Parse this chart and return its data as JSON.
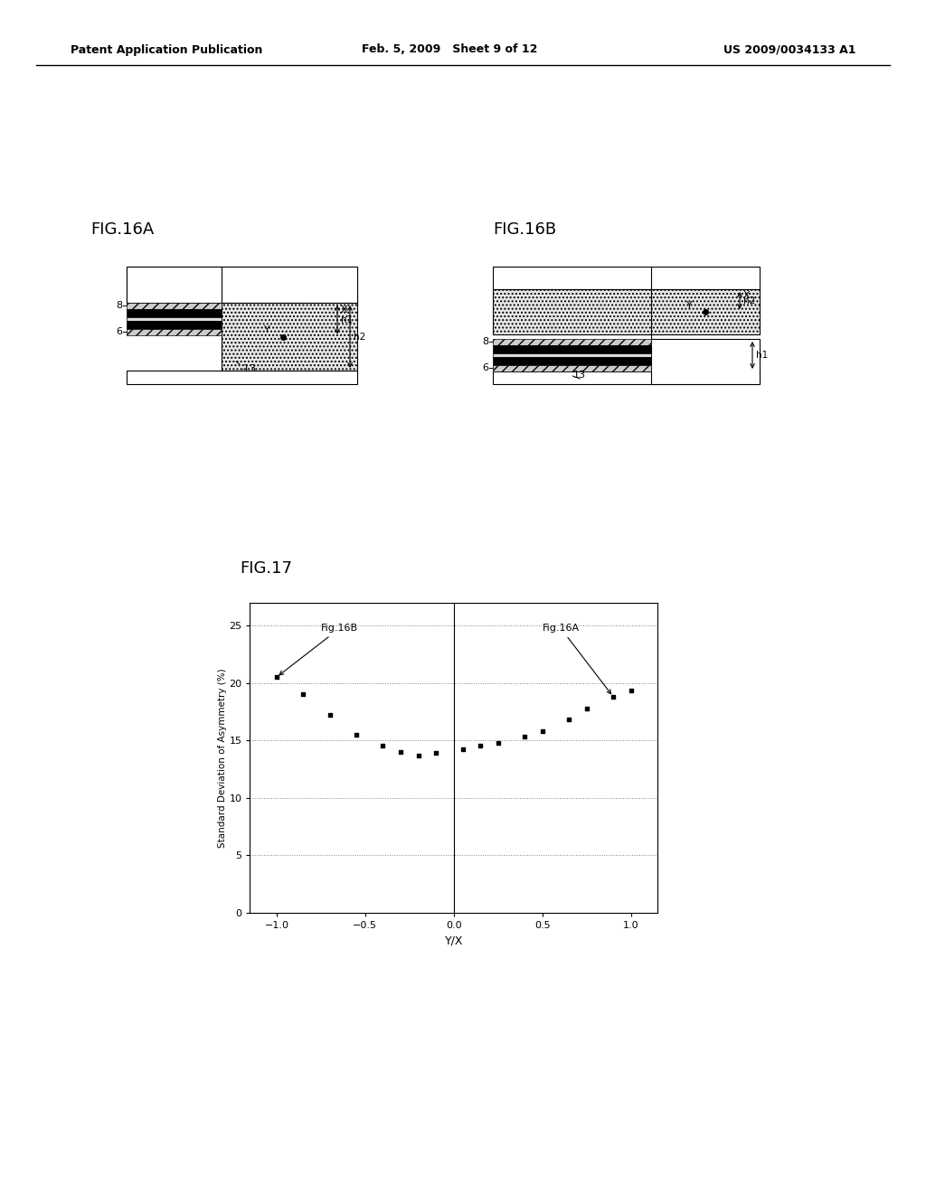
{
  "header_left": "Patent Application Publication",
  "header_mid": "Feb. 5, 2009   Sheet 9 of 12",
  "header_right": "US 2009/0034133 A1",
  "fig16a_label": "FIG.16A",
  "fig16b_label": "FIG.16B",
  "fig17_label": "FIG.17",
  "fig17_xlabel": "Y/X",
  "fig17_ylabel": "Standard Deviation of Asymmetry (%)",
  "fig17_annot_left": "Fig.16B",
  "fig17_annot_right": "Fig.16A",
  "fig17_xlim": [
    -1.15,
    1.15
  ],
  "fig17_ylim": [
    0,
    27
  ],
  "fig17_xticks": [
    -1,
    -0.5,
    0,
    0.5,
    1
  ],
  "fig17_yticks": [
    0,
    5,
    10,
    15,
    20,
    25
  ],
  "fig17_data_x": [
    -1.0,
    -0.85,
    -0.7,
    -0.55,
    -0.4,
    -0.3,
    -0.2,
    -0.1,
    0.05,
    0.15,
    0.25,
    0.4,
    0.5,
    0.65,
    0.75,
    0.9,
    1.0
  ],
  "fig17_data_y": [
    20.5,
    19.0,
    17.2,
    15.5,
    14.5,
    14.0,
    13.7,
    13.9,
    14.2,
    14.5,
    14.8,
    15.3,
    15.8,
    16.8,
    17.8,
    18.8,
    19.3
  ],
  "background_color": "#ffffff"
}
